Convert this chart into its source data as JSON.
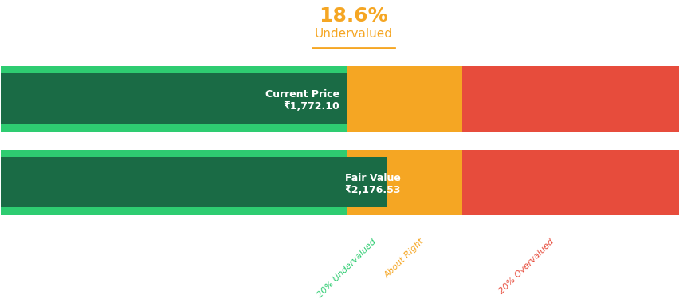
{
  "title_pct": "18.6%",
  "title_label": "Undervalued",
  "title_color": "#F5A623",
  "bg_color": "#ffffff",
  "bar1_label_top": "Current Price",
  "bar1_label_bottom": "₹1,772.10",
  "bar2_label_top": "Fair Value",
  "bar2_label_bottom": "₹2,176.53",
  "current_price": 1772.1,
  "fair_value": 2176.53,
  "undervalued_pct": 0.2,
  "overvalued_pct": 0.2,
  "color_green_light": "#2ECC71",
  "color_green_dark": "#1A6B45",
  "color_amber": "#F5A623",
  "color_amber_dark": "#E8961A",
  "color_red": "#E74C3C",
  "zone_label_undervalued": "20% Undervalued",
  "zone_label_about_right": "About Right",
  "zone_label_overvalued": "20% Overvalued",
  "zone_label_color_undervalued": "#2ECC71",
  "zone_label_color_about_right": "#F5A623",
  "zone_label_color_overvalued": "#E74C3C"
}
